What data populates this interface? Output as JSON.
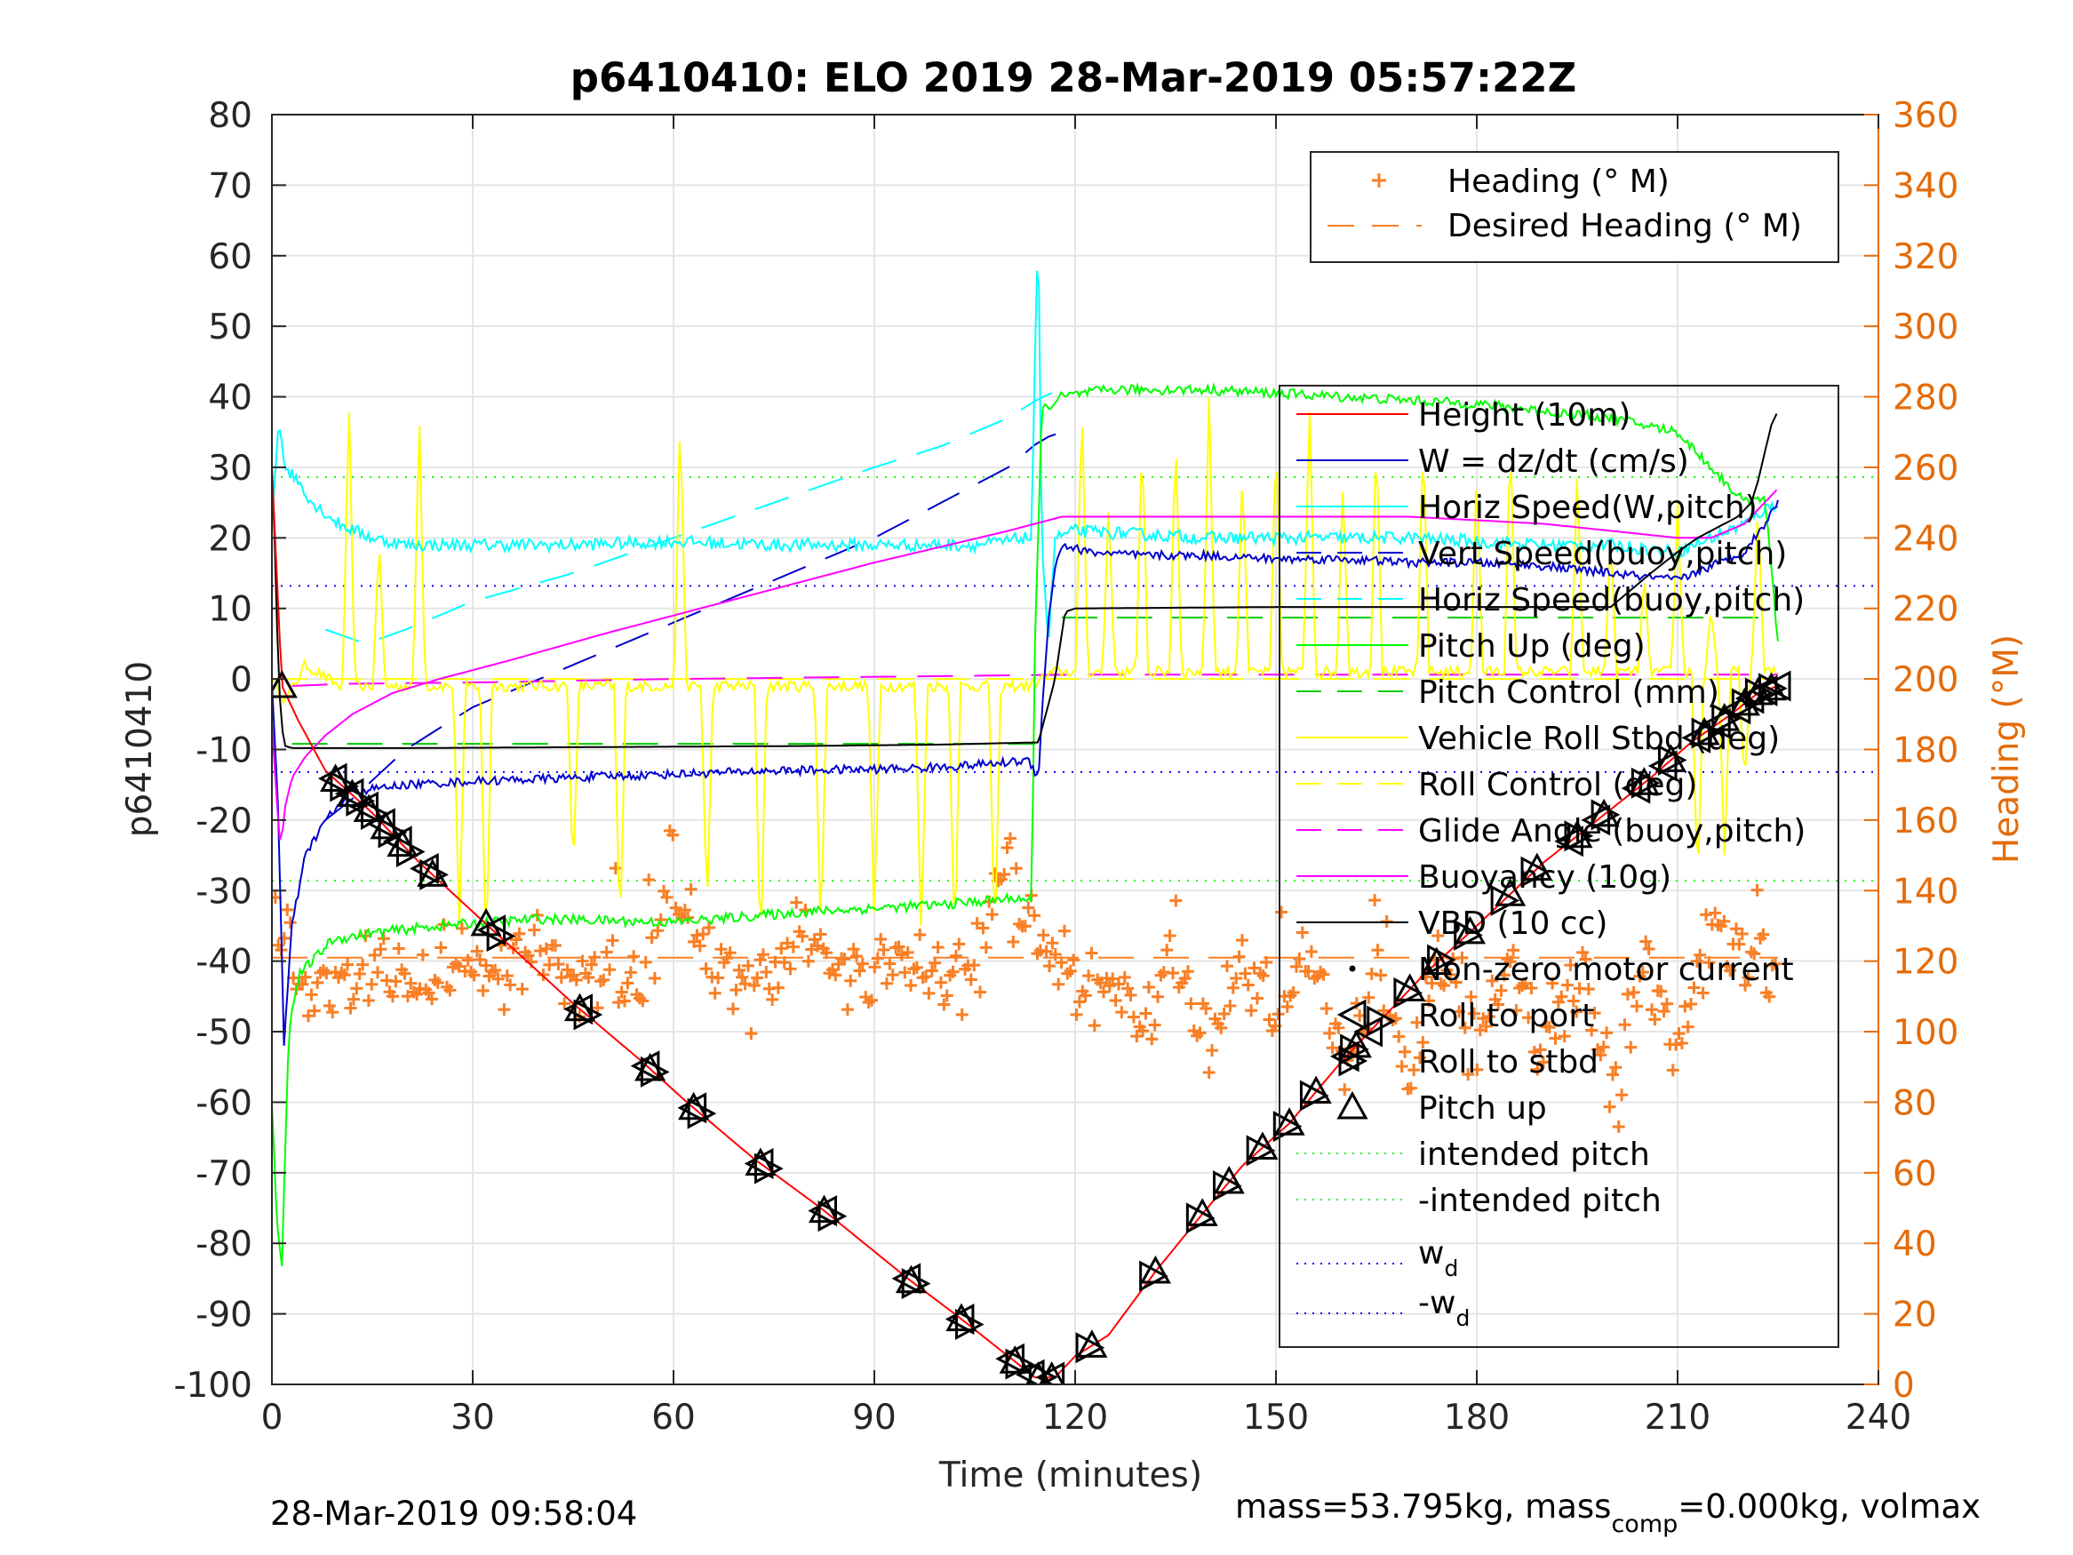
{
  "colors": {
    "height": "#FF0000",
    "w": "#0000CC",
    "horiz_speed": "#00FFFF",
    "pitch_up": "#00FF00",
    "pitch_control": "#00CC00",
    "roll": "#FFFF00",
    "glide_buoy": "#FF00FF",
    "buoyancy": "#FF00FF",
    "vbd": "#000000",
    "heading": "#F97F25",
    "desired_heading": "#F97F25",
    "intended_pitch": "#00FF00",
    "wd": "#0000FF",
    "grid": "#E5E5E5",
    "right_axis": "#E46C0A"
  },
  "chart_data": {
    "type": "line",
    "title": "p6410410: ELO 2019 28-Mar-2019 05:57:22Z",
    "xlabel": "Time (minutes)",
    "ylabel": "p6410410",
    "ylabel_right": "Heading (°M)",
    "xlim": [
      0,
      240
    ],
    "ylim": [
      -100,
      80
    ],
    "ylim_right": [
      0,
      360
    ],
    "x_ticks": [
      "0",
      "30",
      "60",
      "90",
      "120",
      "150",
      "180",
      "210",
      "240"
    ],
    "y_ticks": [
      "80",
      "70",
      "60",
      "50",
      "40",
      "30",
      "20",
      "10",
      "0",
      "-10",
      "-20",
      "-30",
      "-40",
      "-50",
      "-60",
      "-70",
      "-80",
      "-90",
      "-100"
    ],
    "y_ticks_right": [
      "360",
      "340",
      "320",
      "300",
      "280",
      "260",
      "240",
      "220",
      "200",
      "180",
      "160",
      "140",
      "120",
      "100",
      "80",
      "60",
      "40",
      "20",
      "0"
    ],
    "grid": true,
    "legend_top": {
      "placement": "top-right",
      "entries": [
        {
          "label": "Heading (° M)",
          "style": "plus",
          "color": "heading"
        },
        {
          "label": "Desired Heading (° M)",
          "style": "dash",
          "color": "desired_heading"
        }
      ]
    },
    "legend_main": {
      "placement": "right",
      "entries": [
        {
          "label": "Height (10m)",
          "style": "solid",
          "color": "height"
        },
        {
          "label": "W = dz/dt (cm/s)",
          "style": "solid",
          "color": "w"
        },
        {
          "label": "Horiz Speed(W,pitch)",
          "style": "solid",
          "color": "horiz_speed"
        },
        {
          "label": "Vert Speed(buoy,pitch)",
          "style": "dash",
          "color": "w"
        },
        {
          "label": "Horiz Speed(buoy,pitch)",
          "style": "dash",
          "color": "horiz_speed"
        },
        {
          "label": "Pitch Up (deg)",
          "style": "solid",
          "color": "pitch_up"
        },
        {
          "label": "Pitch Control (mm)",
          "style": "dash",
          "color": "pitch_control"
        },
        {
          "label": "Vehicle Roll Stbd (deg)",
          "style": "solid",
          "color": "roll"
        },
        {
          "label": "Roll Control (deg)",
          "style": "dash",
          "color": "roll"
        },
        {
          "label": "Glide Angle (buoy,pitch)",
          "style": "dash",
          "color": "glide_buoy"
        },
        {
          "label": "Buoyancy (10g)",
          "style": "solid",
          "color": "buoyancy"
        },
        {
          "label": "VBD (10 cc)",
          "style": "solid",
          "color": "vbd"
        },
        {
          "label": "Non-zero motor current",
          "style": "dot",
          "color": "vbd"
        },
        {
          "label": "Roll to port",
          "style": "tri-left",
          "color": "vbd"
        },
        {
          "label": "Roll to stbd",
          "style": "tri-right",
          "color": "vbd"
        },
        {
          "label": "Pitch up",
          "style": "tri-up",
          "color": "vbd"
        },
        {
          "label": "intended pitch",
          "style": "dotted",
          "color": "intended_pitch"
        },
        {
          "label": "-intended pitch",
          "style": "dotted",
          "color": "intended_pitch"
        },
        {
          "label": "w",
          "sub": "d",
          "style": "dotted",
          "color": "wd"
        },
        {
          "label": "-w",
          "sub": "d",
          "style": "dotted",
          "color": "wd"
        }
      ]
    },
    "reference_lines": {
      "intended_pitch": 28.6,
      "neg_intended_pitch": -28.6,
      "wd": 13.2,
      "neg_wd": -13.2,
      "pitch_control_dive": -9.2,
      "pitch_control_climb": 8.7,
      "roll_control": 0,
      "desired_heading": 121
    },
    "series": [
      {
        "name": "Height (10m)",
        "key": "height",
        "x": [
          0,
          1.5,
          4,
          8,
          15,
          22,
          30,
          45,
          55,
          62,
          72,
          82,
          95,
          102,
          110,
          114,
          117,
          120,
          125,
          132,
          138,
          145,
          152,
          160,
          166,
          172,
          180,
          190,
          198,
          206,
          212,
          218,
          222,
          225
        ],
        "y": [
          30,
          -1,
          -6,
          -13,
          -19,
          -26,
          -33,
          -46,
          -54,
          -60,
          -68,
          -75,
          -85,
          -90,
          -96,
          -99,
          -99,
          -96,
          -93,
          -84,
          -77,
          -69,
          -63,
          -54,
          -48,
          -42,
          -35,
          -26,
          -20,
          -14,
          -9,
          -5,
          -2,
          -1
        ]
      },
      {
        "name": "W = dz/dt (cm/s)",
        "key": "w",
        "x": [
          0,
          1,
          1.8,
          3,
          5,
          8,
          12,
          20,
          30,
          45,
          60,
          75,
          90,
          100,
          108,
          113,
          114.5,
          115,
          116,
          117,
          118,
          122,
          130,
          140,
          150,
          160,
          170,
          180,
          190,
          200,
          210,
          215,
          220,
          223,
          225
        ],
        "y": [
          0,
          -20,
          -52,
          -35,
          -25,
          -20,
          -16,
          -15,
          -14.5,
          -14,
          -13.5,
          -13,
          -12.8,
          -12.5,
          -12,
          -11.5,
          -14,
          -5,
          8,
          16,
          19,
          18,
          17.5,
          17.5,
          17,
          17,
          16.5,
          16.5,
          16,
          15,
          14,
          16,
          18,
          22,
          25
        ]
      },
      {
        "name": "Horiz Speed(W,pitch)",
        "key": "horiz_speed",
        "x": [
          0,
          1,
          2,
          4,
          6,
          10,
          15,
          20,
          30,
          45,
          60,
          75,
          90,
          105,
          110,
          112,
          113.5,
          114,
          114.5,
          115,
          116,
          117,
          120,
          130,
          140,
          150,
          160,
          170,
          180,
          190,
          200,
          210,
          215,
          220,
          223,
          225
        ],
        "y": [
          22,
          37,
          30,
          28,
          25,
          22,
          20,
          19,
          19,
          19,
          19.5,
          19,
          19,
          19,
          19.5,
          20,
          20,
          45,
          65,
          20,
          5,
          20,
          21,
          20.5,
          20,
          20,
          20,
          20,
          19.5,
          19,
          19,
          18,
          20,
          22,
          24,
          25
        ]
      },
      {
        "name": "Vert Speed(buoy,pitch)",
        "key": "w_buoy",
        "x": [
          8,
          12,
          20,
          30,
          45,
          60,
          75,
          90,
          100,
          110,
          115,
          118
        ],
        "y": [
          -20,
          -17,
          -10,
          -4,
          2,
          8,
          14,
          20,
          25,
          30,
          34,
          35
        ]
      },
      {
        "name": "Horiz Speed(buoy,pitch)",
        "key": "horiz_buoy",
        "x": [
          8,
          14,
          20,
          30,
          45,
          60,
          75,
          90,
          100,
          110,
          115,
          118
        ],
        "y": [
          7,
          5,
          7,
          11,
          15,
          20,
          25,
          30,
          33,
          37,
          40,
          41
        ]
      },
      {
        "name": "Pitch Up (deg)",
        "key": "pitch_up",
        "x": [
          0,
          0.8,
          1.5,
          2.5,
          4,
          6,
          9,
          15,
          25,
          40,
          60,
          80,
          100,
          112,
          113.5,
          114,
          115,
          118,
          125,
          140,
          160,
          180,
          190,
          200,
          210,
          215,
          220,
          223,
          225
        ],
        "y": [
          -60,
          -78,
          -83,
          -50,
          -42,
          -40,
          -37,
          -36,
          -35,
          -34,
          -34.5,
          -33,
          -32,
          -31,
          -32,
          5,
          38,
          40,
          41,
          41,
          40,
          39,
          38,
          37,
          35,
          30,
          25,
          26,
          5
        ]
      },
      {
        "name": "Pitch Control (mm)",
        "key": "pitch_control",
        "segments": [
          [
            [
              3,
              -9.2
            ],
            [
              114,
              -9.2
            ]
          ],
          [
            [
              118,
              8.7
            ],
            [
              225,
              8.7
            ]
          ]
        ]
      },
      {
        "name": "Vehicle Roll Stbd (deg)",
        "key": "roll",
        "x": [
          0,
          2,
          5,
          10,
          15,
          20,
          40,
          60,
          80,
          100,
          113,
          115,
          117,
          120,
          140,
          160,
          180,
          200,
          220,
          225
        ],
        "y": [
          0,
          -3,
          2,
          -1,
          -1,
          -1,
          -1,
          -1,
          -1,
          -1,
          -1,
          0,
          1,
          1,
          1,
          1,
          1,
          1,
          1,
          1
        ],
        "spikes": [
          [
            11.5,
            40
          ],
          [
            16,
            20
          ],
          [
            22,
            38
          ],
          [
            28,
            -35
          ],
          [
            32,
            -40
          ],
          [
            45,
            -28
          ],
          [
            52,
            -37
          ],
          [
            61,
            38
          ],
          [
            65,
            -33
          ],
          [
            73,
            -40
          ],
          [
            82,
            -37
          ],
          [
            90,
            -35
          ],
          [
            97,
            -37
          ],
          [
            102,
            -38
          ],
          [
            108,
            -38
          ],
          [
            121,
            40
          ],
          [
            125,
            25
          ],
          [
            130,
            35
          ],
          [
            135,
            35
          ],
          [
            140,
            40
          ],
          [
            145,
            30
          ],
          [
            150,
            35
          ],
          [
            155,
            40
          ],
          [
            160,
            28
          ],
          [
            165,
            35
          ],
          [
            172,
            35
          ],
          [
            180,
            30
          ],
          [
            185,
            35
          ],
          [
            195,
            30
          ],
          [
            200,
            20
          ],
          [
            205,
            15
          ],
          [
            210,
            25
          ],
          [
            213,
            -30
          ],
          [
            215,
            10
          ],
          [
            217,
            -25
          ],
          [
            220,
            -15
          ],
          [
            222,
            25
          ]
        ]
      },
      {
        "name": "Glide Angle (buoy,pitch)",
        "key": "glide_buoy",
        "x": [
          3,
          10,
          30,
          60,
          90,
          118,
          150,
          180,
          210,
          225
        ],
        "y": [
          -1,
          -0.7,
          -0.5,
          0,
          0.3,
          0.6,
          0.6,
          0.6,
          0.6,
          0.6
        ]
      },
      {
        "name": "Buoyancy (10g)",
        "key": "buoyancy",
        "x": [
          0,
          0.7,
          1.3,
          2,
          3,
          5,
          8,
          12,
          18,
          25,
          35,
          50,
          70,
          90,
          110,
          118,
          130,
          150,
          170,
          190,
          200,
          210,
          215,
          220,
          225
        ],
        "y": [
          -6,
          -17,
          -24,
          -18,
          -14,
          -11,
          -8,
          -5,
          -2,
          0,
          2.5,
          6.5,
          11.5,
          16.5,
          21,
          23,
          23,
          23,
          23,
          22,
          21,
          20,
          20,
          22,
          27
        ]
      },
      {
        "name": "VBD (10 cc)",
        "key": "vbd",
        "x": [
          0,
          0.4,
          1,
          1.5,
          2,
          3,
          20,
          40,
          60,
          80,
          100,
          114,
          114.5,
          117,
          118.5,
          120,
          150,
          175,
          200,
          206,
          210,
          213,
          215,
          217,
          219,
          221,
          222,
          223,
          224,
          225
        ],
        "y": [
          30,
          20,
          0,
          -7,
          -9.5,
          -9.8,
          -9.8,
          -9.7,
          -9.6,
          -9.5,
          -9.3,
          -9,
          -9,
          0,
          9.5,
          10,
          10.2,
          10.2,
          10.2,
          15,
          18,
          20,
          21,
          22,
          23,
          25,
          28,
          32,
          36,
          38
        ]
      },
      {
        "name": "Heading (° M)",
        "key": "heading",
        "axis": "right",
        "anchors_x": [
          0,
          1.5,
          4,
          7,
          10,
          14,
          18,
          22,
          28,
          34,
          40,
          45,
          50,
          55,
          60,
          65,
          70,
          75,
          80,
          85,
          90,
          95,
          100,
          105,
          110,
          115,
          120,
          125,
          130,
          135,
          140,
          145,
          150,
          155,
          160,
          165,
          170,
          175,
          180,
          185,
          190,
          195,
          200,
          205,
          210,
          215,
          220,
          225
        ],
        "anchors_y": [
          138,
          128,
          118,
          112,
          116,
          120,
          117,
          114,
          120,
          116,
          124,
          110,
          118,
          112,
          145,
          120,
          115,
          117,
          125,
          118,
          116,
          120,
          113,
          118,
          150,
          125,
          112,
          115,
          103,
          120,
          98,
          117,
          105,
          122,
          90,
          115,
          88,
          120,
          98,
          117,
          95,
          122,
          90,
          118,
          95,
          130,
          122,
          115
        ]
      }
    ],
    "markers": {
      "roll_port_x": [
        9.3,
        11.8,
        14,
        16.5,
        19,
        23,
        33,
        46,
        56,
        63,
        73,
        82.5,
        95,
        103,
        110.5,
        113.5,
        116.5,
        160.5,
        164,
        194,
        198,
        204,
        208,
        213,
        216,
        219,
        221,
        223,
        225
      ],
      "roll_stbd_x": [
        10.6,
        13,
        15.2,
        17.8,
        20.5,
        24,
        34,
        47,
        57,
        64,
        74,
        83.5,
        96,
        104,
        111.5,
        115,
        122,
        131.5,
        138.5,
        142.5,
        147.5,
        151.5,
        155.5,
        161.5,
        165.5,
        169.5,
        174.5,
        178.5,
        184,
        188.5,
        195,
        199,
        205,
        209,
        214,
        217,
        220,
        222,
        224
      ],
      "pitch_up_x": [
        1.5,
        9.5,
        12,
        14.5,
        17,
        19.5,
        24,
        32,
        46,
        56.5,
        63,
        73,
        82.5,
        95.5,
        103,
        111,
        114.5,
        116.5,
        122.5,
        132,
        139,
        143,
        148,
        152,
        156,
        162,
        170,
        174,
        179,
        185,
        189,
        195,
        199,
        205,
        209,
        214,
        217,
        220,
        222,
        224
      ]
    }
  },
  "legend": {
    "heading_label": "Heading (° M)",
    "desired_heading_label": "Desired Heading (° M)",
    "height_label": "Height (10m)",
    "w_label": "W = dz/dt (cm/s)",
    "horiz_w_label": "Horiz Speed(W,pitch)",
    "vert_buoy_label": "Vert Speed(buoy,pitch)",
    "horiz_buoy_label": "Horiz Speed(buoy,pitch)",
    "pitch_up_label": "Pitch Up (deg)",
    "pitch_control_label": "Pitch Control (mm)",
    "roll_label": "Vehicle Roll Stbd (deg)",
    "roll_control_label": "Roll Control (deg)",
    "glide_label": "Glide Angle (buoy,pitch)",
    "buoyancy_label": "Buoyancy (10g)",
    "vbd_label": "VBD (10 cc)",
    "motor_label": "Non-zero motor current",
    "roll_port_label": "Roll to port",
    "roll_stbd_label": "Roll to stbd",
    "pitch_marker_label": "Pitch up",
    "intended_label": "intended pitch",
    "neg_intended_label": "-intended pitch",
    "wd_label": "w",
    "wd_sub": "d",
    "neg_wd_label": "-w",
    "neg_wd_sub": "d"
  },
  "footer": {
    "timestamp": "28-Mar-2019 09:58:04",
    "mass_text": "mass=53.795kg, mass",
    "mass_sub": "comp",
    "mass_rest": "=0.000kg, volmax"
  }
}
